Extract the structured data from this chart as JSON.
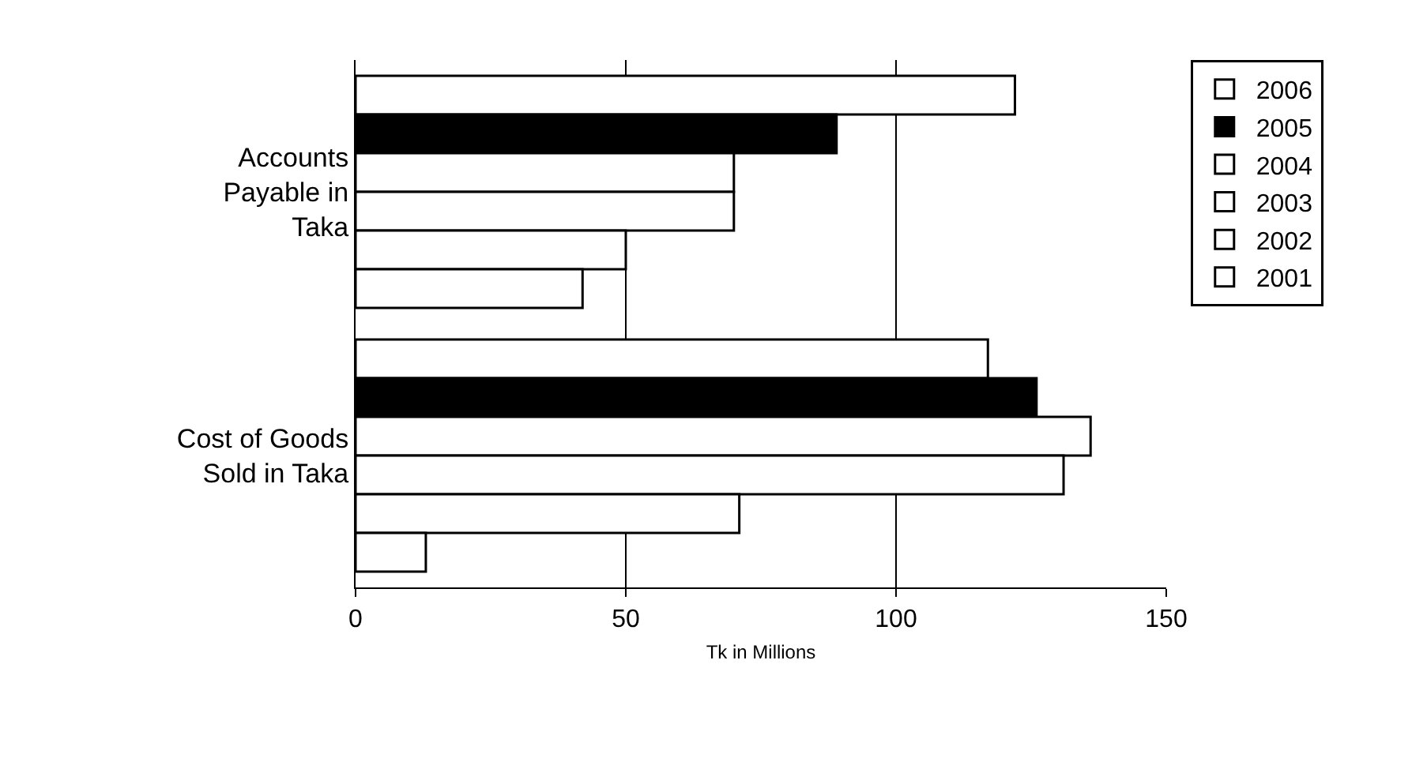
{
  "chart_data": {
    "type": "bar",
    "orientation": "horizontal",
    "categories": [
      "Accounts Payable in Taka",
      "Cost of Goods Sold in Taka"
    ],
    "series": [
      {
        "name": "2006",
        "color": "#ffffff",
        "values": [
          122,
          117
        ]
      },
      {
        "name": "2005",
        "color": "#000000",
        "values": [
          89,
          126
        ]
      },
      {
        "name": "2004",
        "color": "#ffffff",
        "values": [
          70,
          136
        ]
      },
      {
        "name": "2003",
        "color": "#ffffff",
        "values": [
          70,
          131
        ]
      },
      {
        "name": "2002",
        "color": "#ffffff",
        "values": [
          50,
          71
        ]
      },
      {
        "name": "2001",
        "color": "#ffffff",
        "values": [
          42,
          13
        ]
      }
    ],
    "xlim": [
      0,
      150
    ],
    "xticks": [
      0,
      50,
      100,
      150
    ],
    "xlabel": "Tk in Millions",
    "grid": "x",
    "legend": "right"
  }
}
